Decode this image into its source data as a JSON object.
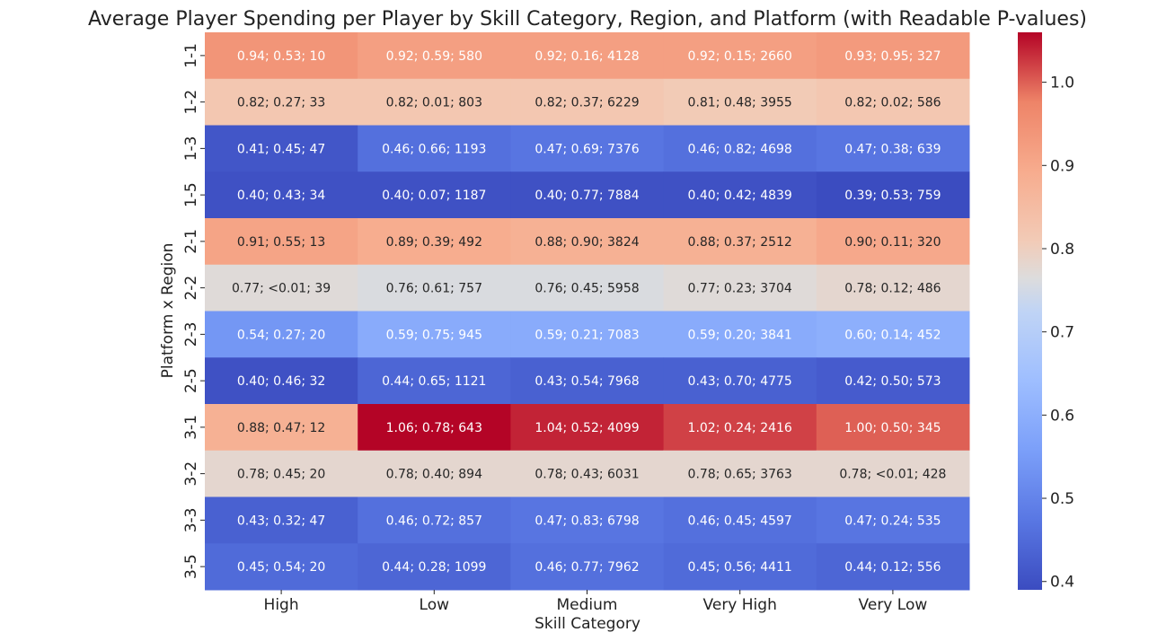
{
  "chart_data": {
    "type": "heatmap",
    "title": "Average Player Spending per Player by Skill Category, Region, and Platform (with Readable P-values)",
    "xlabel": "Skill Category",
    "ylabel": "Platform x Region",
    "x_categories": [
      "High",
      "Low",
      "Medium",
      "Very High",
      "Very Low"
    ],
    "y_categories": [
      "1-1",
      "1-2",
      "1-3",
      "1-5",
      "2-1",
      "2-2",
      "2-3",
      "2-5",
      "3-1",
      "3-2",
      "3-3",
      "3-5"
    ],
    "values": [
      [
        0.94,
        0.92,
        0.92,
        0.92,
        0.93
      ],
      [
        0.82,
        0.82,
        0.82,
        0.81,
        0.82
      ],
      [
        0.41,
        0.46,
        0.47,
        0.46,
        0.47
      ],
      [
        0.4,
        0.4,
        0.4,
        0.4,
        0.39
      ],
      [
        0.91,
        0.89,
        0.88,
        0.88,
        0.9
      ],
      [
        0.77,
        0.76,
        0.76,
        0.77,
        0.78
      ],
      [
        0.54,
        0.59,
        0.59,
        0.59,
        0.6
      ],
      [
        0.4,
        0.44,
        0.43,
        0.43,
        0.42
      ],
      [
        0.88,
        1.06,
        1.04,
        1.02,
        1.0
      ],
      [
        0.78,
        0.78,
        0.78,
        0.78,
        0.78
      ],
      [
        0.43,
        0.46,
        0.47,
        0.46,
        0.47
      ],
      [
        0.45,
        0.44,
        0.46,
        0.45,
        0.44
      ]
    ],
    "annotations": [
      [
        "0.94; 0.53; 10",
        "0.92; 0.59; 580",
        "0.92; 0.16; 4128",
        "0.92; 0.15; 2660",
        "0.93; 0.95; 327"
      ],
      [
        "0.82; 0.27; 33",
        "0.82; 0.01; 803",
        "0.82; 0.37; 6229",
        "0.81; 0.48; 3955",
        "0.82; 0.02; 586"
      ],
      [
        "0.41; 0.45; 47",
        "0.46; 0.66; 1193",
        "0.47; 0.69; 7376",
        "0.46; 0.82; 4698",
        "0.47; 0.38; 639"
      ],
      [
        "0.40; 0.43; 34",
        "0.40; 0.07; 1187",
        "0.40; 0.77; 7884",
        "0.40; 0.42; 4839",
        "0.39; 0.53; 759"
      ],
      [
        "0.91; 0.55; 13",
        "0.89; 0.39; 492",
        "0.88; 0.90; 3824",
        "0.88; 0.37; 2512",
        "0.90; 0.11; 320"
      ],
      [
        "0.77; <0.01; 39",
        "0.76; 0.61; 757",
        "0.76; 0.45; 5958",
        "0.77; 0.23; 3704",
        "0.78; 0.12; 486"
      ],
      [
        "0.54; 0.27; 20",
        "0.59; 0.75; 945",
        "0.59; 0.21; 7083",
        "0.59; 0.20; 3841",
        "0.60; 0.14; 452"
      ],
      [
        "0.40; 0.46; 32",
        "0.44; 0.65; 1121",
        "0.43; 0.54; 7968",
        "0.43; 0.70; 4775",
        "0.42; 0.50; 573"
      ],
      [
        "0.88; 0.47; 12",
        "1.06; 0.78; 643",
        "1.04; 0.52; 4099",
        "1.02; 0.24; 2416",
        "1.00; 0.50; 345"
      ],
      [
        "0.78; 0.45; 20",
        "0.78; 0.40; 894",
        "0.78; 0.43; 6031",
        "0.78; 0.65; 3763",
        "0.78; <0.01; 428"
      ],
      [
        "0.43; 0.32; 47",
        "0.46; 0.72; 857",
        "0.47; 0.83; 6798",
        "0.46; 0.45; 4597",
        "0.47; 0.24; 535"
      ],
      [
        "0.45; 0.54; 20",
        "0.44; 0.28; 1099",
        "0.46; 0.77; 7962",
        "0.45; 0.56; 4411",
        "0.44; 0.12; 556"
      ]
    ],
    "colorbar": {
      "range": [
        0.39,
        1.06
      ],
      "ticks": [
        "0.4",
        "0.5",
        "0.6",
        "0.7",
        "0.8",
        "0.9",
        "1.0"
      ],
      "colormap": "coolwarm"
    },
    "colors": {
      "low": "#3b4cc0",
      "mid": "#dddddd",
      "high": "#b40426"
    }
  }
}
